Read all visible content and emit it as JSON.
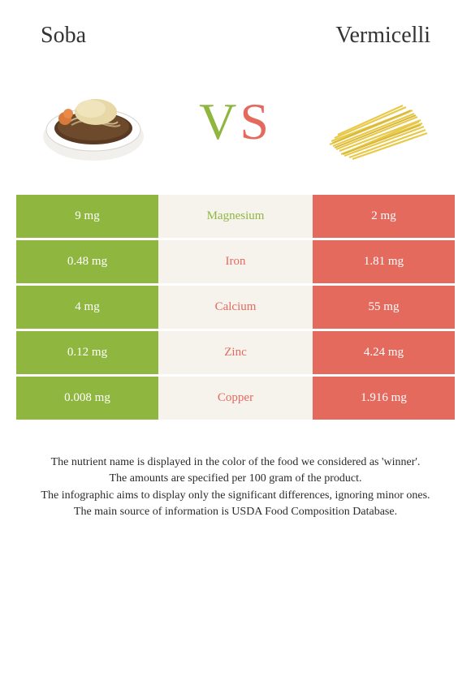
{
  "left_food": "Soba",
  "right_food": "Vermicelli",
  "vs_v": "V",
  "vs_s": "S",
  "colors": {
    "left_bar": "#8fb63f",
    "right_bar": "#e46a5e",
    "mid_bg": "#f6f3ed",
    "winner_left": "#8fb63f",
    "winner_right": "#e46a5e",
    "text_dark": "#2b2b2b"
  },
  "rows": [
    {
      "nutrient": "Magnesium",
      "left": "9 mg",
      "right": "2 mg",
      "winner": "left"
    },
    {
      "nutrient": "Iron",
      "left": "0.48 mg",
      "right": "1.81 mg",
      "winner": "right"
    },
    {
      "nutrient": "Calcium",
      "left": "4 mg",
      "right": "55 mg",
      "winner": "right"
    },
    {
      "nutrient": "Zinc",
      "left": "0.12 mg",
      "right": "4.24 mg",
      "winner": "right"
    },
    {
      "nutrient": "Copper",
      "left": "0.008 mg",
      "right": "1.916 mg",
      "winner": "right"
    }
  ],
  "footer_lines": [
    "The nutrient name is displayed in the color of the food we considered as 'winner'.",
    "The amounts are specified per 100 gram of the product.",
    "The infographic aims to display only the significant differences, ignoring minor ones.",
    "The main source of information is USDA Food Composition Database."
  ]
}
